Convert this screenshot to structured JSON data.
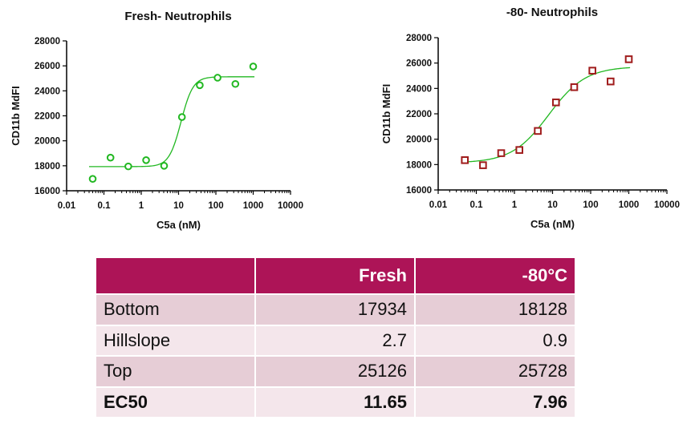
{
  "chart_data": [
    {
      "type": "scatter",
      "title": "Fresh- Neutrophils",
      "xlabel": "C5a (nM)",
      "ylabel": "CD11b MdFI",
      "x_scale": "log",
      "xlim": [
        0.01,
        10000
      ],
      "ylim": [
        16000,
        28000
      ],
      "x_ticks": [
        "0.01",
        "0.1",
        "1",
        "10",
        "100",
        "1000",
        "10000"
      ],
      "y_ticks": [
        "16000",
        "18000",
        "20000",
        "22000",
        "24000",
        "26000",
        "28000"
      ],
      "marker": "circle",
      "color": "#22b822",
      "series": [
        {
          "x": [
            0.05,
            0.15,
            0.45,
            1.35,
            4.1,
            12.3,
            37,
            111,
            333,
            1000
          ],
          "y": [
            16950,
            18650,
            17950,
            18450,
            18000,
            21900,
            24450,
            25050,
            24550,
            25950
          ]
        }
      ],
      "fit": {
        "model": "4PL",
        "bottom": 17934,
        "top": 25126,
        "hillslope": 2.7,
        "ec50": 11.65
      }
    },
    {
      "type": "scatter",
      "title": "-80- Neutrophils",
      "xlabel": "C5a (nM)",
      "ylabel": "CD11b MdFI",
      "x_scale": "log",
      "xlim": [
        0.01,
        10000
      ],
      "ylim": [
        16000,
        28000
      ],
      "x_ticks": [
        "0.01",
        "0.1",
        "1",
        "10",
        "100",
        "1000",
        "10000"
      ],
      "y_ticks": [
        "16000",
        "18000",
        "20000",
        "22000",
        "24000",
        "26000",
        "28000"
      ],
      "marker": "square",
      "color": "#a01c1c",
      "fit_color": "#22b822",
      "series": [
        {
          "x": [
            0.05,
            0.15,
            0.45,
            1.35,
            4.1,
            12.3,
            37,
            111,
            333,
            1000
          ],
          "y": [
            18350,
            17950,
            18900,
            19150,
            20650,
            22900,
            24100,
            25400,
            24550,
            26300
          ]
        }
      ],
      "fit": {
        "model": "4PL",
        "bottom": 18128,
        "top": 25728,
        "hillslope": 0.9,
        "ec50": 7.96
      }
    }
  ],
  "table": {
    "header": [
      "",
      "Fresh",
      "-80°C"
    ],
    "rows": [
      {
        "label": "Bottom",
        "fresh": "17934",
        "frozen": "18128"
      },
      {
        "label": "Hillslope",
        "fresh": "2.7",
        "frozen": "0.9"
      },
      {
        "label": "Top",
        "fresh": "25126",
        "frozen": "25728"
      },
      {
        "label": "EC50",
        "fresh": "11.65",
        "frozen": "7.96"
      }
    ]
  }
}
